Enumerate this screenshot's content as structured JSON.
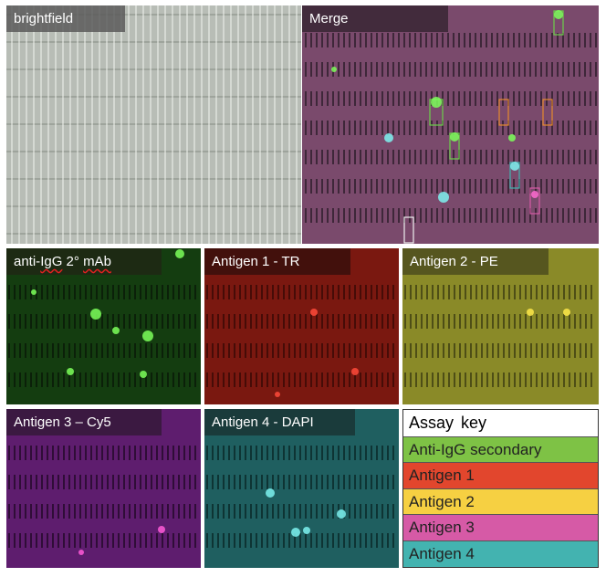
{
  "panels": {
    "brightfield": {
      "label": "brightfield",
      "tint": "#9aa39a"
    },
    "merge": {
      "label": "Merge",
      "tint": "#8c4f7a"
    },
    "igg": {
      "label_main": "anti-",
      "label_squiggle": "IgG",
      "label_rest": " 2° ",
      "label_squiggle2": "mAb",
      "tint": "#1c5a14"
    },
    "antigen1": {
      "label": "Antigen 1 - TR",
      "tint": "#8a1c14"
    },
    "antigen2": {
      "label": "Antigen 2 - PE",
      "tint": "#8e8c2a"
    },
    "antigen3": {
      "label": "Antigen 3 – Cy5",
      "tint": "#6a1f7a"
    },
    "antigen4": {
      "label": "Antigen 4 - DAPI",
      "tint": "#1f6e6e"
    }
  },
  "key": {
    "title": "Assay  key",
    "entries": [
      {
        "label": "Anti-IgG secondary",
        "color": "#7ec245"
      },
      {
        "label": "Antigen 1",
        "color": "#e2462d"
      },
      {
        "label": "Antigen 2",
        "color": "#f6d042"
      },
      {
        "label": "Antigen 3",
        "color": "#d65aa6"
      },
      {
        "label": "Antigen 4",
        "color": "#43b3b0"
      }
    ]
  }
}
